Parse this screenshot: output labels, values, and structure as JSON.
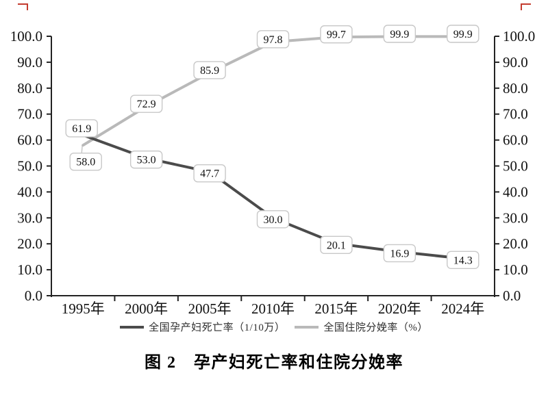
{
  "decorations": {
    "corner_mark_color": "#c43b2e"
  },
  "chart_data": {
    "type": "line",
    "title": "图 2　孕产妇死亡率和住院分娩率",
    "categories": [
      "1995年",
      "2000年",
      "2005年",
      "2010年",
      "2015年",
      "2020年",
      "2024年"
    ],
    "series": [
      {
        "name": "全国孕产妇死亡率（1/10万）",
        "values": [
          61.9,
          53.0,
          47.7,
          30.0,
          20.1,
          16.9,
          14.3
        ],
        "labels": [
          "61.9",
          "53.0",
          "47.7",
          "30.0",
          "20.1",
          "16.9",
          "14.3"
        ],
        "color": "#4b4b4b"
      },
      {
        "name": "全国住院分娩率（%）",
        "values": [
          58.0,
          72.9,
          85.9,
          97.8,
          99.7,
          99.9,
          99.9
        ],
        "labels": [
          "58.0",
          "72.9",
          "85.9",
          "97.8",
          "99.7",
          "99.9",
          "99.9"
        ],
        "color": "#b9b9b9"
      }
    ],
    "ylim": [
      0,
      100
    ],
    "ytick_step": 10,
    "y_tick_labels": [
      "0.0",
      "10.0",
      "20.0",
      "30.0",
      "40.0",
      "50.0",
      "60.0",
      "70.0",
      "80.0",
      "90.0",
      "100.0"
    ],
    "dual_y_axis": true,
    "grid": false,
    "legend_position": "bottom",
    "axis_color": "#222222",
    "value_label_box": {
      "fill": "#ffffff",
      "border": "#c8c8c8",
      "text_color": "#111111"
    }
  }
}
